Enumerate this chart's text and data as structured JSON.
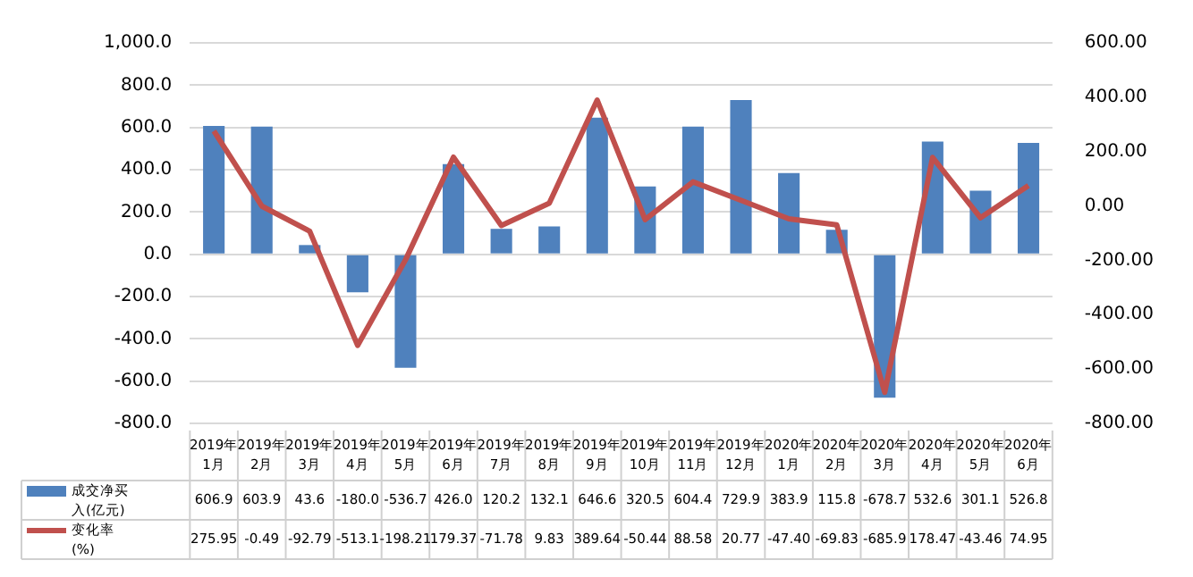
{
  "chart_data": {
    "type": "bar",
    "categories": [
      "2019年\n1月",
      "2019年\n2月",
      "2019年\n3月",
      "2019年\n4月",
      "2019年\n5月",
      "2019年\n6月",
      "2019年\n7月",
      "2019年\n8月",
      "2019年\n9月",
      "2019年\n10月",
      "2019年\n11月",
      "2019年\n12月",
      "2020年\n1月",
      "2020年\n2月",
      "2020年\n3月",
      "2020年\n4月",
      "2020年\n5月",
      "2020年\n6月"
    ],
    "series": [
      {
        "name": "成交净买入(亿元)",
        "color": "#4f81bd",
        "values": [
          606.9,
          603.9,
          43.6,
          -180.0,
          -536.7,
          426.0,
          120.2,
          132.1,
          646.6,
          320.5,
          604.4,
          729.9,
          383.9,
          115.8,
          -678.7,
          532.6,
          301.1,
          526.8
        ],
        "value_labels": [
          "606.9",
          "603.9",
          "43.6",
          "-180.0",
          "-536.7",
          "426.0",
          "120.2",
          "132.1",
          "646.6",
          "320.5",
          "604.4",
          "729.9",
          "383.9",
          "115.8",
          "-678.7",
          "532.6",
          "301.1",
          "526.8"
        ]
      },
      {
        "name": "变化率\n(%)",
        "type": "line",
        "axis": "y2",
        "color": "#c0504d",
        "values": [
          275.95,
          -0.49,
          -92.79,
          -513.1,
          -198.21,
          179.37,
          -71.78,
          9.83,
          389.64,
          -50.44,
          88.58,
          20.77,
          -47.4,
          -69.83,
          -685.9,
          178.47,
          -43.46,
          74.95
        ],
        "value_labels": [
          "275.95",
          "-0.49",
          "-92.79",
          "-513.1",
          "-198.21",
          "179.37",
          "-71.78",
          "9.83",
          "389.64",
          "-50.44",
          "88.58",
          "20.77",
          "-47.40",
          "-69.83",
          "-685.9",
          "178.47",
          "-43.46",
          "74.95"
        ]
      }
    ],
    "ylim": [
      -800,
      1000
    ],
    "yticks": [
      {
        "value": -800,
        "label": "-800.0"
      },
      {
        "value": -600,
        "label": "-600.0"
      },
      {
        "value": -400,
        "label": "-400.0"
      },
      {
        "value": -200,
        "label": "-200.0"
      },
      {
        "value": 0,
        "label": "0.0"
      },
      {
        "value": 200,
        "label": "200.0"
      },
      {
        "value": 400,
        "label": "400.0"
      },
      {
        "value": 600,
        "label": "600.0"
      },
      {
        "value": 800,
        "label": "800.0"
      },
      {
        "value": 1000,
        "label": "1,000.0"
      }
    ],
    "y2lim": [
      -800,
      600
    ],
    "y2ticks": [
      {
        "value": -800,
        "label": "-800.00"
      },
      {
        "value": -600,
        "label": "-600.00"
      },
      {
        "value": -400,
        "label": "-400.00"
      },
      {
        "value": -200,
        "label": "-200.00"
      },
      {
        "value": 0,
        "label": "0.00"
      },
      {
        "value": 200,
        "label": "200.00"
      },
      {
        "value": 400,
        "label": "400.00"
      },
      {
        "value": 600,
        "label": "600.00"
      }
    ],
    "grid": "y",
    "legend": "bottom",
    "marker": "none"
  }
}
